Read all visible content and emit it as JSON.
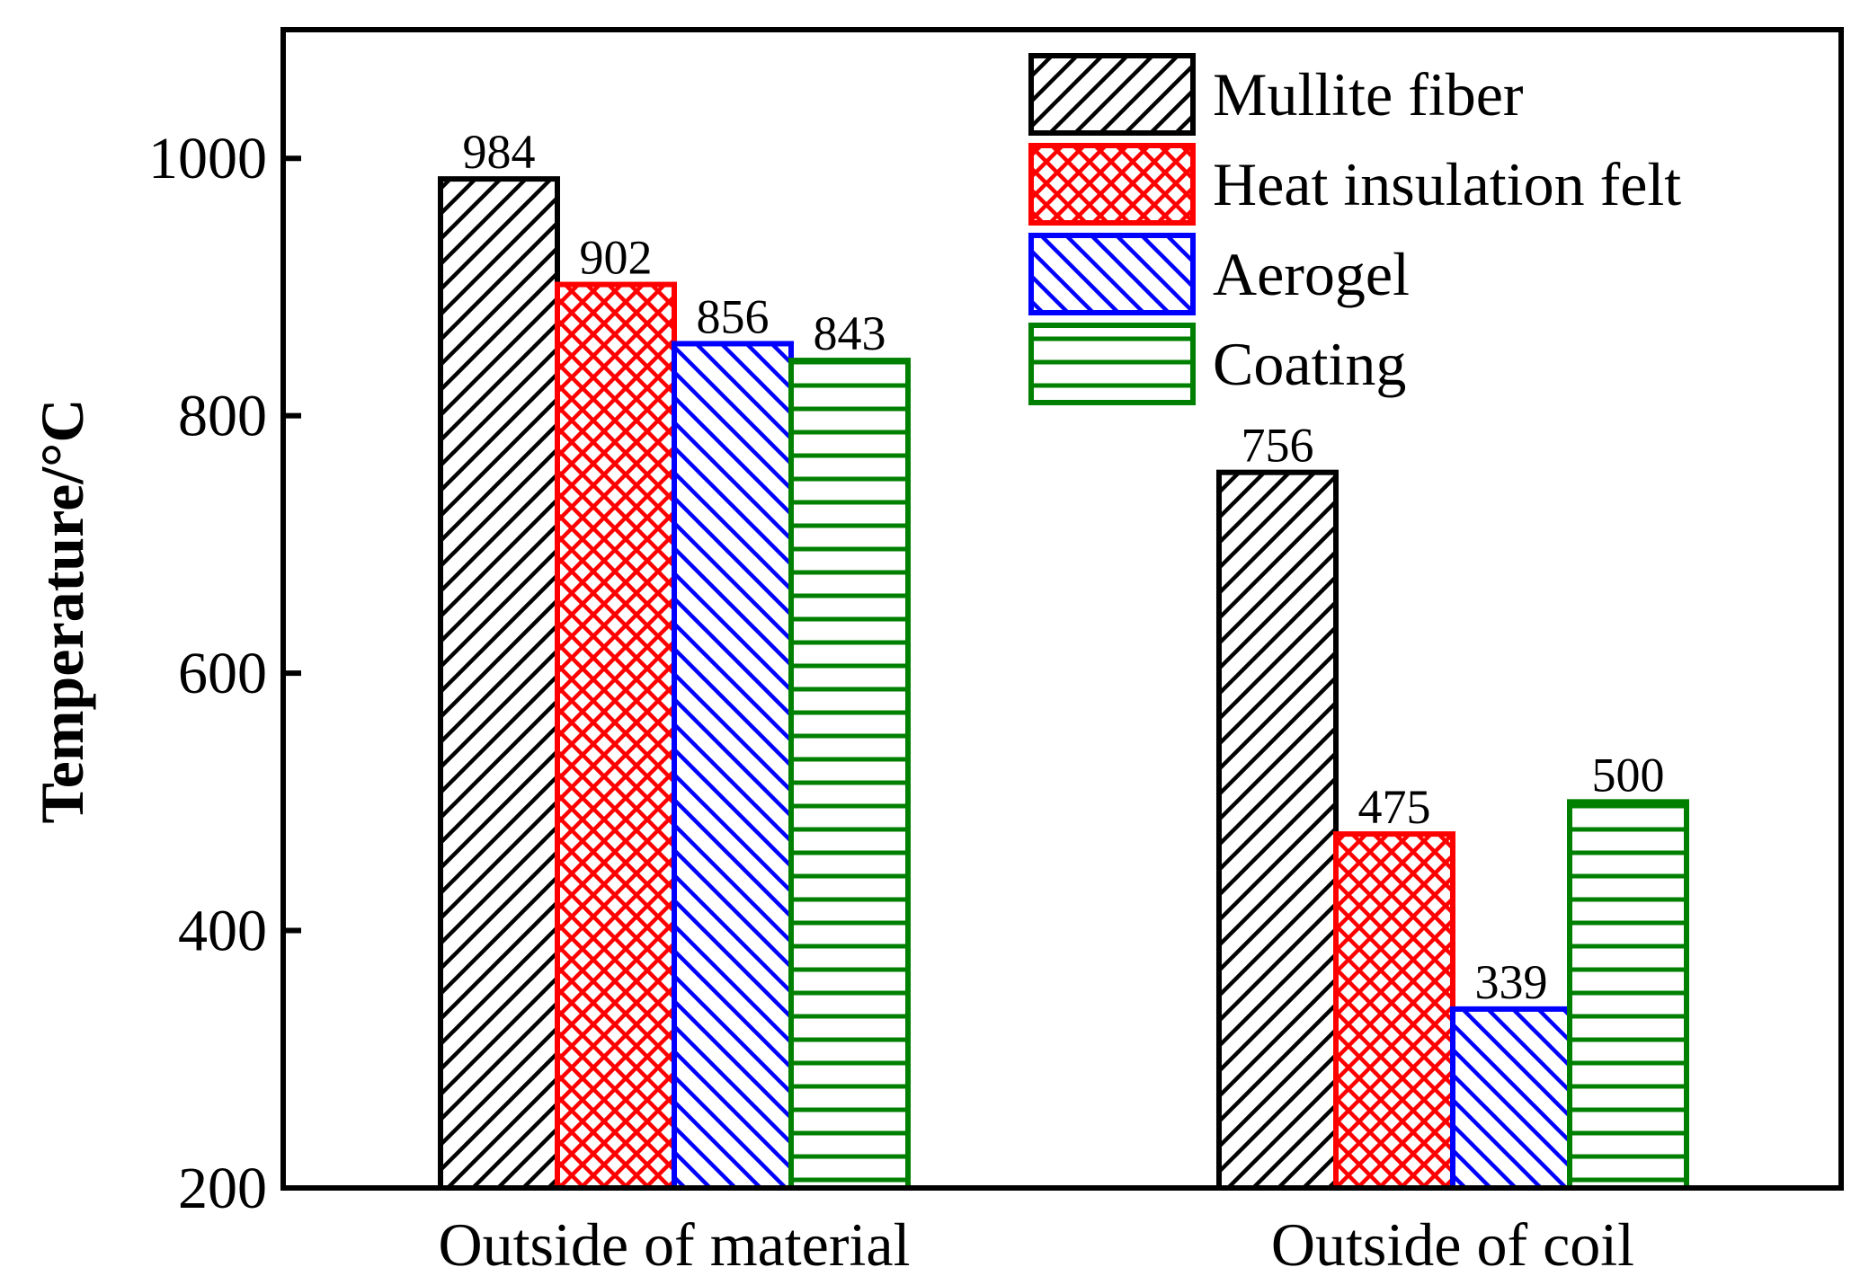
{
  "chart_data": {
    "type": "bar",
    "title": "",
    "xlabel": "",
    "ylabel": "Temperature/°C",
    "ylim": [
      200,
      1100
    ],
    "yticks": [
      200,
      400,
      600,
      800,
      1000
    ],
    "categories": [
      "Outside of material",
      "Outside of coil"
    ],
    "series": [
      {
        "name": "Mullite fiber",
        "values": [
          984,
          756
        ],
        "color": "#000000",
        "pattern": "diagonal-up"
      },
      {
        "name": "Heat insulation felt",
        "values": [
          902,
          475
        ],
        "color": "#ff0000",
        "pattern": "crosshatch"
      },
      {
        "name": "Aerogel",
        "values": [
          856,
          339
        ],
        "color": "#0000ff",
        "pattern": "diagonal-down"
      },
      {
        "name": "Coating",
        "values": [
          843,
          500
        ],
        "color": "#008000",
        "pattern": "horizontal"
      }
    ],
    "legend_position": "top-right",
    "grid": false
  }
}
